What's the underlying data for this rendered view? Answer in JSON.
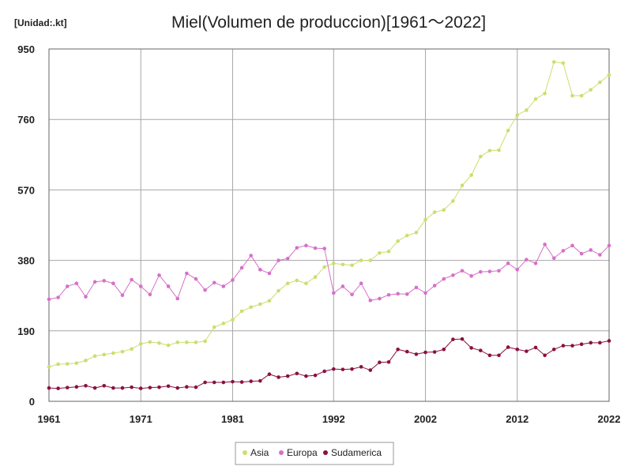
{
  "chart_data": {
    "type": "line",
    "title": "Miel(Volumen de produccion)[1961～2022]",
    "unit_label": "[Unidad:.kt]",
    "ylim": [
      0,
      950
    ],
    "yticks": [
      "0",
      "190",
      "380",
      "570",
      "760",
      "950"
    ],
    "xticks": [
      "1961",
      "1971",
      "1981",
      "1992",
      "2002",
      "2012",
      "2022"
    ],
    "x": [
      1961,
      1962,
      1963,
      1964,
      1965,
      1966,
      1967,
      1968,
      1969,
      1970,
      1971,
      1972,
      1973,
      1974,
      1975,
      1976,
      1977,
      1978,
      1979,
      1980,
      1981,
      1982,
      1983,
      1984,
      1985,
      1986,
      1987,
      1988,
      1989,
      1990,
      1991,
      1992,
      1993,
      1994,
      1995,
      1996,
      1997,
      1998,
      1999,
      2000,
      2001,
      2002,
      2003,
      2004,
      2005,
      2006,
      2007,
      2008,
      2009,
      2010,
      2011,
      2012,
      2013,
      2014,
      2015,
      2016,
      2017,
      2018,
      2019,
      2020,
      2021,
      2022
    ],
    "grid": true,
    "legend_position": "bottom",
    "series": [
      {
        "name": "Asia",
        "color": "#c8e06e",
        "values": [
          93,
          100,
          101,
          103,
          110,
          122,
          126,
          130,
          134,
          141,
          155,
          160,
          157,
          151,
          159,
          159,
          159,
          162,
          200,
          210,
          220,
          243,
          254,
          262,
          271,
          298,
          318,
          326,
          318,
          335,
          362,
          372,
          369,
          367,
          380,
          380,
          400,
          404,
          432,
          447,
          455,
          490,
          510,
          516,
          540,
          582,
          610,
          660,
          676,
          677,
          730,
          772,
          785,
          815,
          830,
          915,
          912,
          824,
          824,
          840,
          860,
          880
        ]
      },
      {
        "name": "Europa",
        "color": "#d670c8",
        "values": [
          275,
          280,
          310,
          318,
          282,
          322,
          325,
          318,
          286,
          328,
          310,
          288,
          340,
          310,
          277,
          345,
          330,
          300,
          320,
          310,
          327,
          360,
          393,
          355,
          345,
          380,
          385,
          414,
          420,
          413,
          412,
          292,
          310,
          288,
          318,
          272,
          277,
          287,
          290,
          289,
          307,
          292,
          312,
          330,
          340,
          352,
          338,
          349,
          350,
          352,
          372,
          355,
          382,
          372,
          423,
          386,
          406,
          420,
          398,
          408,
          395,
          420
        ]
      },
      {
        "name": "Sudamerica",
        "color": "#8b1040",
        "values": [
          36,
          35,
          37,
          39,
          42,
          36,
          42,
          36,
          36,
          38,
          35,
          37,
          38,
          41,
          36,
          39,
          38,
          51,
          51,
          51,
          53,
          52,
          54,
          55,
          73,
          65,
          68,
          75,
          68,
          70,
          81,
          87,
          86,
          87,
          93,
          84,
          105,
          106,
          140,
          134,
          127,
          132,
          133,
          140,
          167,
          168,
          144,
          137,
          124,
          124,
          146,
          140,
          135,
          145,
          124,
          140,
          150,
          150,
          154,
          158,
          158,
          163
        ]
      }
    ]
  }
}
